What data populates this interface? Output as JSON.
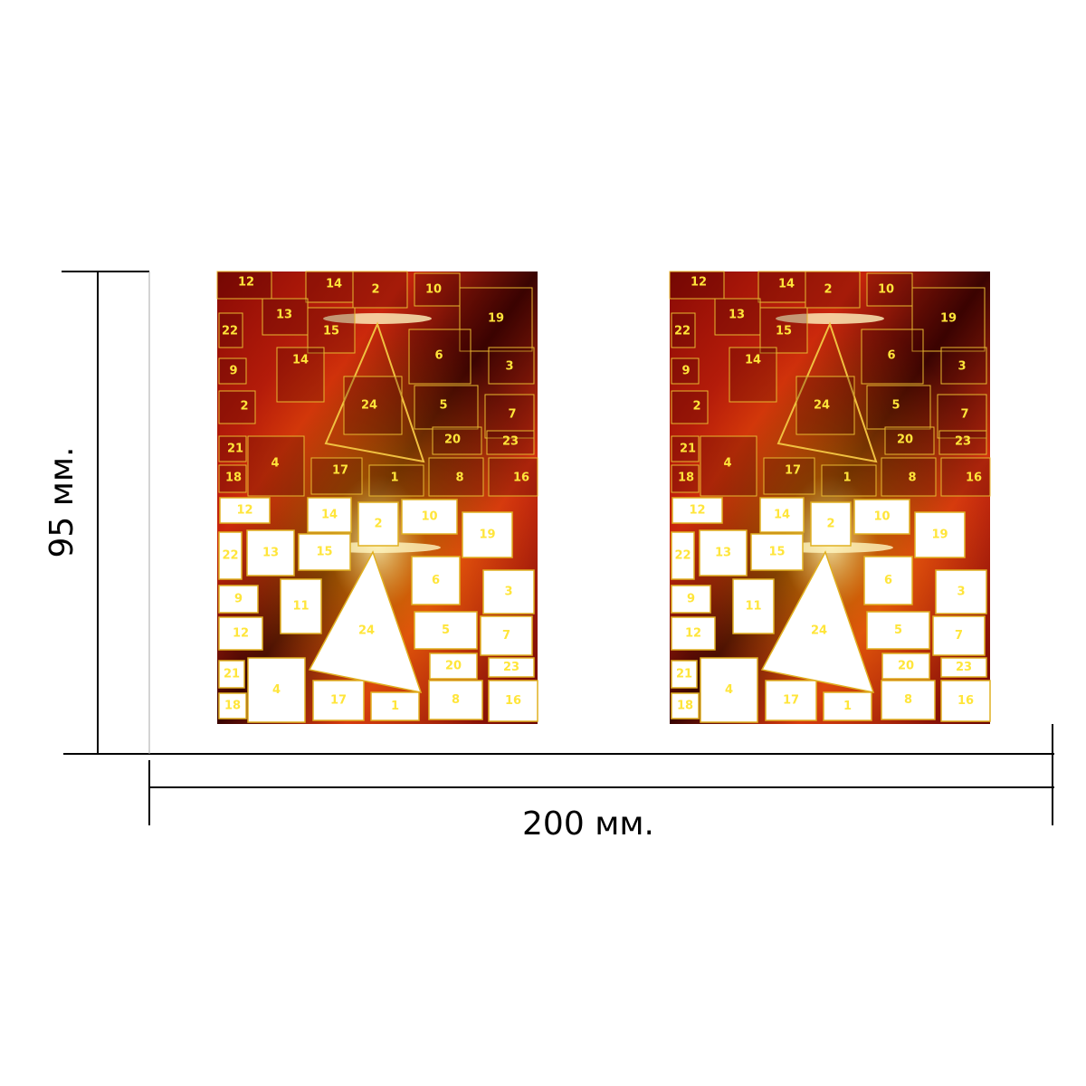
{
  "dimensions": {
    "height": "95 мм.",
    "width": "200 мм."
  },
  "calendar": {
    "top_doors": [
      "12",
      "14",
      "2",
      "10",
      "19",
      "22",
      "13",
      "15",
      "6",
      "3",
      "9",
      "14",
      "2",
      "24",
      "5",
      "7",
      "21",
      "4",
      "20",
      "23",
      "18",
      "17",
      "1",
      "8",
      "16"
    ],
    "bottom_doors": [
      "12",
      "14",
      "2",
      "10",
      "19",
      "22",
      "13",
      "15",
      "6",
      "3",
      "9",
      "11",
      "12",
      "5",
      "7",
      "21",
      "4",
      "20",
      "23",
      "18",
      "17",
      "1",
      "8",
      "16",
      "24"
    ]
  }
}
